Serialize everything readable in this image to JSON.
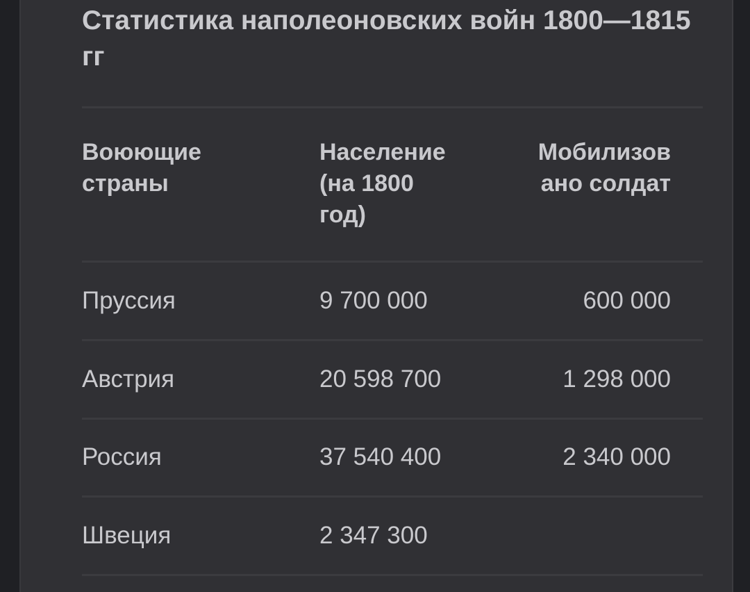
{
  "title": "Статистика наполеоновских войн 1800—1815 гг",
  "table": {
    "headers": [
      "Воюющие страны",
      "Население (на 1800 год)",
      "Мобилизов ано солдат"
    ],
    "rows": [
      [
        "Пруссия",
        "9 700 000",
        "600 000"
      ],
      [
        "Австрия",
        "20 598 700",
        "1 298 000"
      ],
      [
        "Россия",
        "37 540 400",
        "2 340 000"
      ],
      [
        "Швеция",
        "2 347 300",
        ""
      ]
    ]
  }
}
